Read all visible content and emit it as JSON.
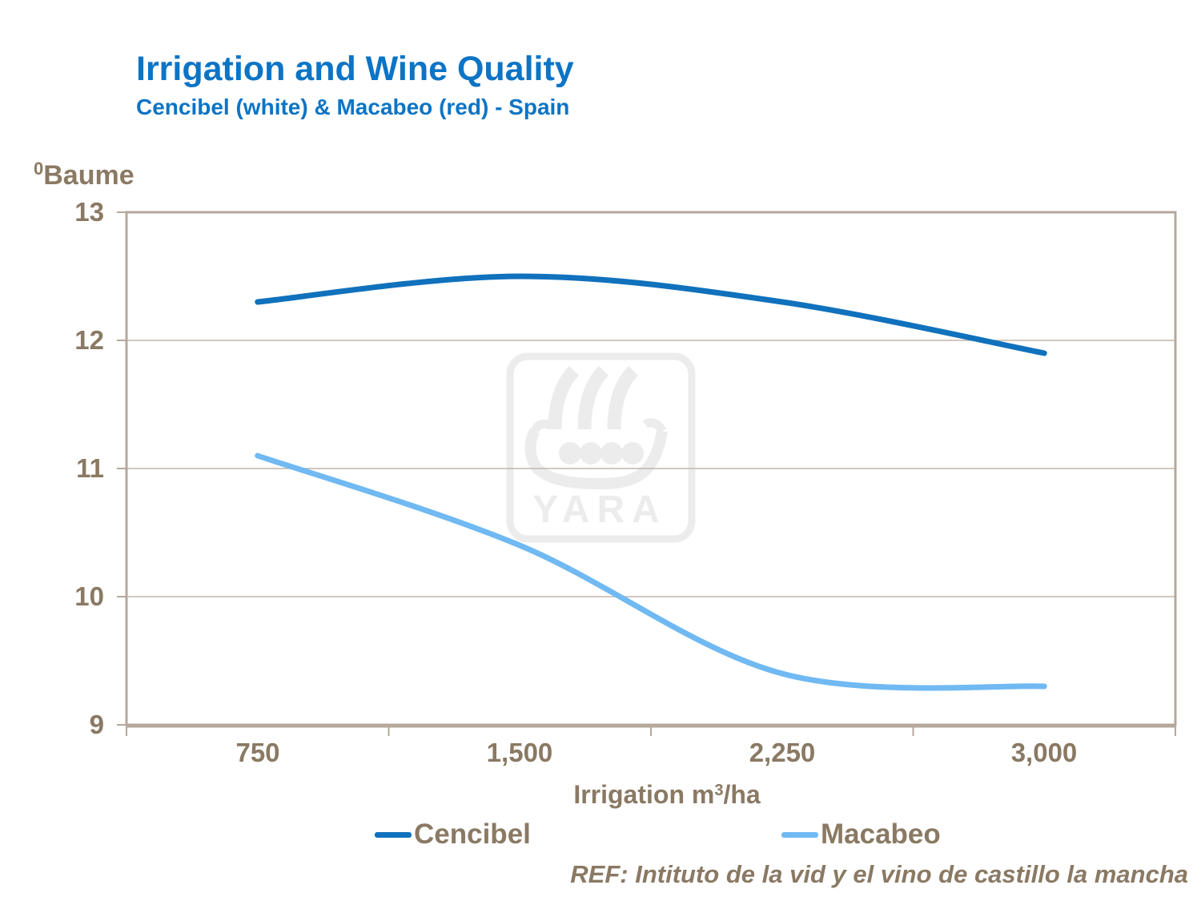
{
  "header": {
    "title": "Irrigation and Wine Quality",
    "subtitle": "Cencibel (white) & Macabeo (red) - Spain"
  },
  "y_axis": {
    "unit_sup": "0",
    "unit_name": "Baume",
    "ticks": [
      "13",
      "12",
      "11",
      "10",
      "9"
    ]
  },
  "x_axis": {
    "title_prefix": "Irrigation m",
    "title_sup": "3",
    "title_suffix": "/ha",
    "ticks": [
      "750",
      "1,500",
      "2,250",
      "3,000"
    ]
  },
  "legend": {
    "items": [
      {
        "label": "Cencibel"
      },
      {
        "label": "Macabeo"
      }
    ]
  },
  "watermark": {
    "text": "YARA"
  },
  "footer": {
    "ref": "REF: Intituto de la vid y el vino de castillo la mancha"
  },
  "colors": {
    "title_blue": "#0C74C5",
    "text_brown": "#8A7963",
    "axis_frame": "#B5A89B",
    "gridline": "#C2B5A7",
    "watermark": "#ECECEC"
  },
  "chart_data": {
    "type": "line",
    "title": "Irrigation and Wine Quality",
    "subtitle": "Cencibel (white) & Macabeo (red) - Spain",
    "xlabel": "Irrigation m3/ha",
    "ylabel": "0Baume",
    "x": [
      750,
      1500,
      2250,
      3000
    ],
    "x_tick_labels": [
      "750",
      "1,500",
      "2,250",
      "3,000"
    ],
    "series": [
      {
        "name": "Cencibel",
        "color": "#1071BC",
        "values": [
          12.3,
          12.5,
          12.3,
          11.9
        ]
      },
      {
        "name": "Macabeo",
        "color": "#70B9F2",
        "values": [
          11.1,
          10.4,
          9.4,
          9.3
        ]
      }
    ],
    "ylim": [
      9,
      13
    ],
    "y_ticks": [
      9,
      10,
      11,
      12,
      13
    ],
    "grid": true,
    "legend_position": "bottom",
    "curve": "smooth"
  }
}
